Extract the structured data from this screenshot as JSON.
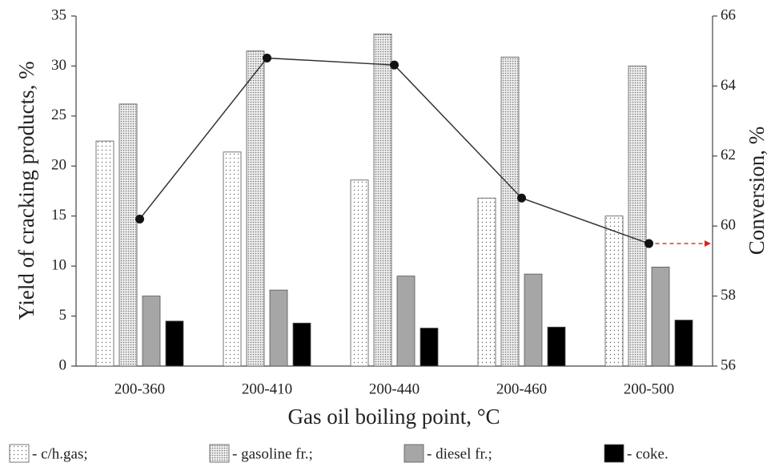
{
  "chart_data": {
    "type": "bar",
    "xlabel": "Gas oil boiling point, °C",
    "ylabel": "Yield of cracking products, %",
    "y2label": "Conversion, %",
    "categories": [
      "200-360",
      "200-410",
      "200-440",
      "200-460",
      "200-500"
    ],
    "series": [
      {
        "name": "- c/h.gas;",
        "color": "#ffffff",
        "pattern": "sparse-dots",
        "values": [
          22.5,
          21.4,
          18.6,
          16.8,
          15.0
        ]
      },
      {
        "name": "- gasoline fr.;",
        "color": "#e0e0e0",
        "pattern": "dense-dots",
        "values": [
          26.2,
          31.5,
          33.2,
          30.9,
          30.0
        ]
      },
      {
        "name": "- diesel fr.;",
        "color": "#a6a6a6",
        "values": [
          7.0,
          7.6,
          9.0,
          9.2,
          9.9
        ]
      },
      {
        "name": "- coke.",
        "color": "#000000",
        "values": [
          4.5,
          4.3,
          3.8,
          3.9,
          4.6
        ]
      },
      {
        "type": "line",
        "axis": "y2",
        "color": "#333333",
        "values": [
          60.2,
          64.8,
          64.6,
          60.8,
          59.5
        ]
      }
    ],
    "ylim": [
      0,
      35
    ],
    "yticks": [
      0,
      5,
      10,
      15,
      20,
      25,
      30,
      35
    ],
    "y2lim": [
      56,
      66
    ],
    "y2ticks": [
      56,
      58,
      60,
      62,
      64,
      66
    ],
    "grid": false
  }
}
